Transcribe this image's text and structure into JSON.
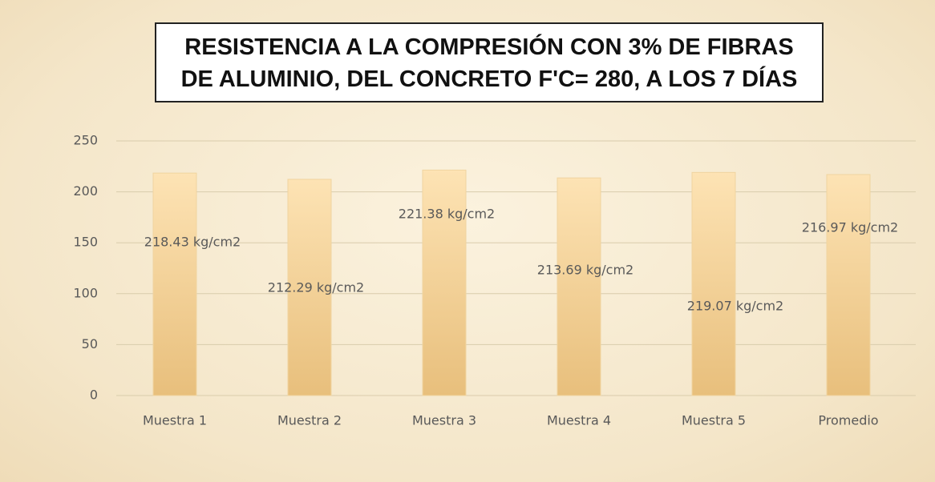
{
  "chart_data": {
    "type": "bar",
    "title": "RESISTENCIA A LA COMPRESIÓN CON 3% DE FIBRAS DE ALUMINIO, DEL CONCRETO F'C= 280, A LOS 7 DÍAS",
    "categories": [
      "Muestra 1",
      "Muestra 2",
      "Muestra 3",
      "Muestra 4",
      "Muestra 5",
      "Promedio"
    ],
    "values": [
      218.43,
      212.29,
      221.38,
      213.69,
      219.07,
      216.97
    ],
    "value_labels": [
      "218.43 kg/cm2",
      "212.29 kg/cm2",
      "221.38 kg/cm2",
      "213.69 kg/cm2",
      "219.07 kg/cm2",
      "216.97 kg/cm2"
    ],
    "color": "#f9cf8e",
    "ylim": [
      0,
      250
    ],
    "yticks": [
      0,
      50,
      100,
      150,
      200,
      250
    ],
    "grid": true
  }
}
